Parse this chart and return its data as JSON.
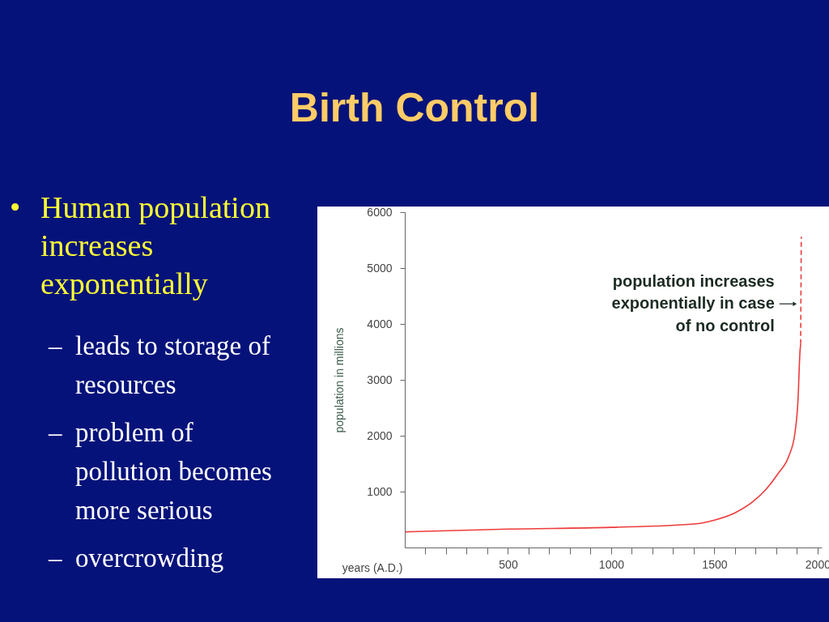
{
  "chart_data": {
    "type": "line",
    "title": "Birth Control",
    "xlabel": "years (A.D.)",
    "ylabel": "population in millions",
    "xlim": [
      0,
      2020
    ],
    "ylim": [
      0,
      6000
    ],
    "xticks": [
      {
        "value": 100,
        "label": null
      },
      {
        "value": 200,
        "label": null
      },
      {
        "value": 300,
        "label": null
      },
      {
        "value": 400,
        "label": null
      },
      500,
      {
        "value": 600,
        "label": null
      },
      {
        "value": 700,
        "label": null
      },
      {
        "value": 800,
        "label": null
      },
      {
        "value": 900,
        "label": null
      },
      1000,
      {
        "value": 1100,
        "label": null
      },
      {
        "value": 1200,
        "label": null
      },
      {
        "value": 1300,
        "label": null
      },
      {
        "value": 1400,
        "label": null
      },
      1500,
      {
        "value": 1600,
        "label": null
      },
      {
        "value": 1700,
        "label": null
      },
      {
        "value": 1800,
        "label": null
      },
      {
        "value": 1900,
        "label": null
      },
      2000
    ],
    "yticks": [
      1000,
      2000,
      3000,
      4000,
      5000,
      6000
    ],
    "grid": false,
    "series": [
      {
        "color": "#ee3b3b",
        "line_style": "solid",
        "x": [
          0,
          500,
          1000,
          1400,
          1500,
          1600,
          1690,
          1750,
          1810,
          1860,
          1890,
          1905,
          1915,
          1918
        ],
        "values": [
          280,
          330,
          360,
          420,
          490,
          620,
          830,
          1040,
          1330,
          1630,
          2040,
          2630,
          3520,
          3640
        ]
      },
      {
        "color": "#ee3b3b",
        "line_style": "dashed",
        "x": [
          1918,
          1921
        ],
        "values": [
          3640,
          5560
        ]
      }
    ],
    "annotations": [
      {
        "text": "population increases exponentially in case of no control",
        "x": 1921,
        "y": 4360
      },
      "• Human population increases exponentially",
      "– leads to storage of resources",
      "– problem of pollution becomes more serious",
      "– overcrowding"
    ]
  }
}
